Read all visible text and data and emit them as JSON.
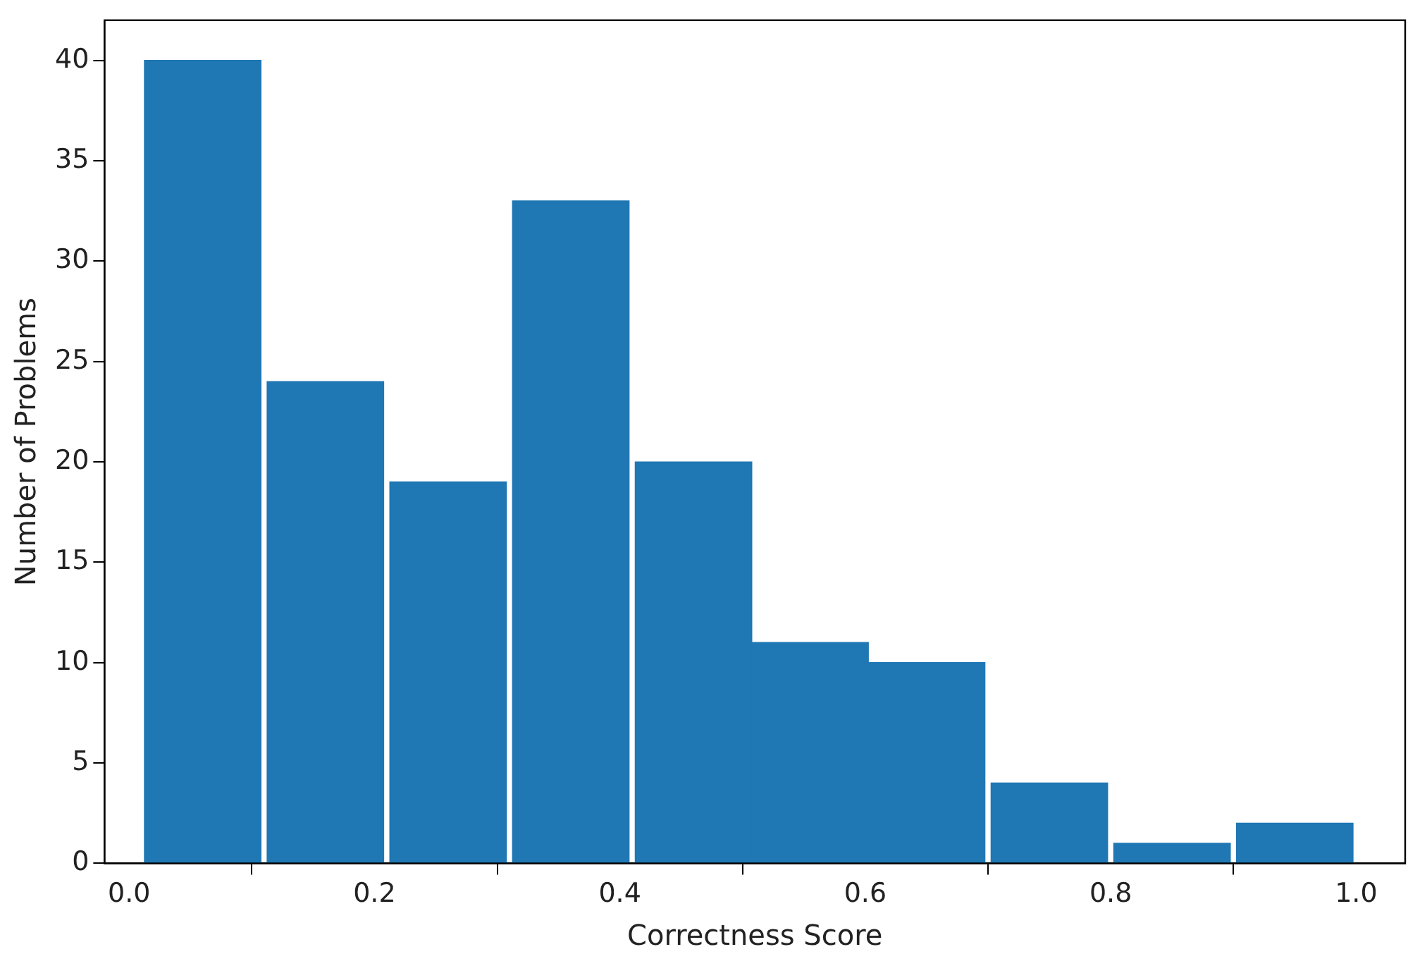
{
  "chart_data": {
    "type": "histogram",
    "xlabel": "Correctness Score",
    "ylabel": "Number of Problems",
    "bins": [
      0.01,
      0.11,
      0.21,
      0.31,
      0.41,
      0.51,
      0.6,
      0.7,
      0.8,
      0.9,
      1.0
    ],
    "values": [
      40,
      24,
      19,
      33,
      20,
      11,
      10,
      4,
      1,
      2
    ],
    "color": "#1f77b4",
    "xlim": [
      -0.02,
      1.04
    ],
    "xticks": [
      {
        "value": 0,
        "label": "0.0"
      },
      0.2,
      0.4,
      0.6,
      0.8,
      {
        "value": 1,
        "label": "1.0"
      }
    ],
    "ylim": [
      0,
      42
    ],
    "yticks": [
      0,
      5,
      10,
      15,
      20,
      25,
      30,
      35,
      40
    ],
    "grid": false,
    "legend": false
  }
}
